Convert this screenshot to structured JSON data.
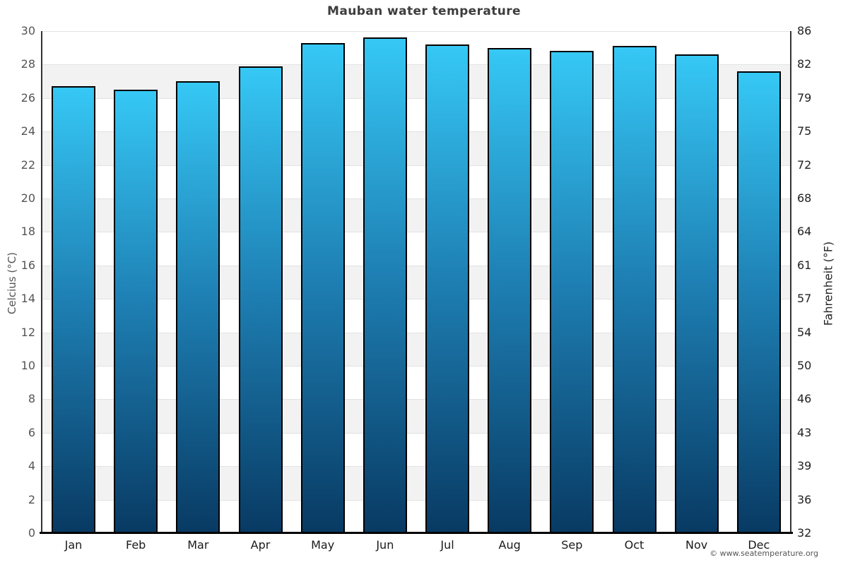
{
  "page": {
    "copyright": "© www.seatemperature.org"
  },
  "chart_data": {
    "type": "bar",
    "title": "Mauban water temperature",
    "categories": [
      "Jan",
      "Feb",
      "Mar",
      "Apr",
      "May",
      "Jun",
      "Jul",
      "Aug",
      "Sep",
      "Oct",
      "Nov",
      "Dec"
    ],
    "values": [
      26.7,
      26.5,
      27.0,
      27.9,
      29.3,
      29.6,
      29.2,
      29.0,
      28.8,
      29.1,
      28.6,
      27.6
    ],
    "unit": "°C",
    "ylabel_left": "Celcius (°C)",
    "ylabel_right": "Fahrenheit (°F)",
    "ylim_celsius": [
      0,
      30
    ],
    "ytick_step_celsius": 2,
    "left_ticks": [
      "30",
      "28",
      "26",
      "24",
      "22",
      "20",
      "18",
      "16",
      "14",
      "12",
      "10",
      "8",
      "6",
      "4",
      "2",
      "0"
    ],
    "right_ticks": [
      "86",
      "82",
      "79",
      "75",
      "72",
      "68",
      "64",
      "61",
      "57",
      "54",
      "50",
      "46",
      "43",
      "39",
      "36",
      "32"
    ],
    "grid": "alternating-horizontal-bands",
    "legend": "none",
    "colors": {
      "bar_gradient_top": "#36c8f5",
      "bar_gradient_mid": "#1e7fb3",
      "bar_gradient_bottom": "#083a63",
      "bar_border": "#000000",
      "band_gray": "#f2f2f2",
      "gridline": "#e2e2e2",
      "axis_line": "#333333",
      "bottom_axis": "#000000",
      "title_text": "#3d3d3d",
      "left_axis_text": "#555555",
      "right_axis_text": "#222222"
    }
  }
}
